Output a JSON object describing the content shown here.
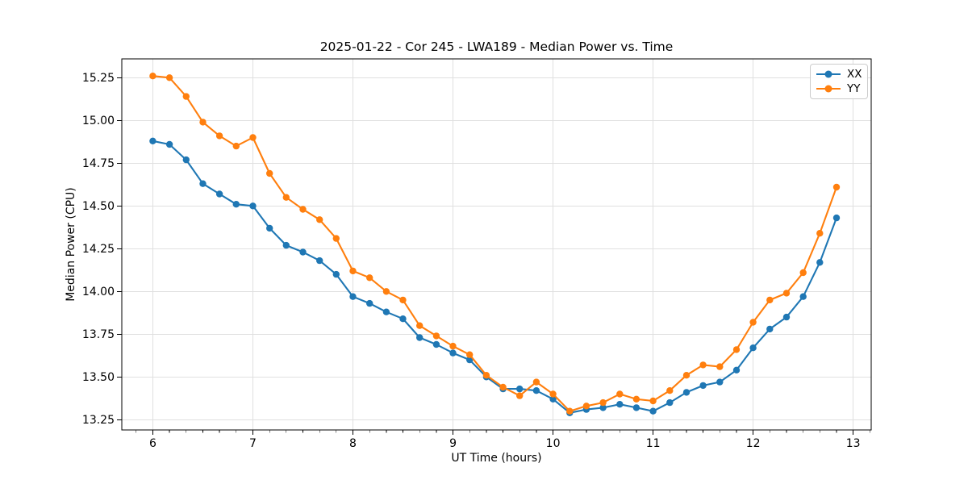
{
  "figure": {
    "background": "#ffffff"
  },
  "chart_data": {
    "type": "line",
    "title": "2025-01-22 - Cor 245 - LWA189 - Median Power vs. Time",
    "xlabel": "UT Time (hours)",
    "ylabel": "Median Power (CPU)",
    "xlim": [
      5.69,
      13.18
    ],
    "ylim": [
      13.19,
      15.36
    ],
    "xticks": [
      6,
      7,
      8,
      9,
      10,
      11,
      12,
      13
    ],
    "xtick_labels": [
      "6",
      "7",
      "8",
      "9",
      "10",
      "11",
      "12",
      "13"
    ],
    "yticks": [
      13.25,
      13.5,
      13.75,
      14.0,
      14.25,
      14.5,
      14.75,
      15.0,
      15.25
    ],
    "ytick_labels": [
      "13.25",
      "13.50",
      "13.75",
      "14.00",
      "14.25",
      "14.50",
      "14.75",
      "15.00",
      "15.25"
    ],
    "minor_xtick_interval": 0.166667,
    "grid": true,
    "grid_color": "#e0e0e0",
    "axis_color": "#000000",
    "legend_position": "upper right",
    "marker": "circle",
    "x": [
      6.0,
      6.1667,
      6.3333,
      6.5,
      6.6667,
      6.8333,
      7.0,
      7.1667,
      7.3333,
      7.5,
      7.6667,
      7.8333,
      8.0,
      8.1667,
      8.3333,
      8.5,
      8.6667,
      8.8333,
      9.0,
      9.1667,
      9.3333,
      9.5,
      9.6667,
      9.8333,
      10.0,
      10.1667,
      10.3333,
      10.5,
      10.6667,
      10.8333,
      11.0,
      11.1667,
      11.3333,
      11.5,
      11.6667,
      11.8333,
      12.0,
      12.1667,
      12.3333,
      12.5,
      12.6667,
      12.8333
    ],
    "series": [
      {
        "name": "XX",
        "color": "#1f77b4",
        "values": [
          14.88,
          14.86,
          14.77,
          14.63,
          14.57,
          14.51,
          14.5,
          14.37,
          14.27,
          14.23,
          14.18,
          14.1,
          13.97,
          13.93,
          13.88,
          13.84,
          13.73,
          13.69,
          13.64,
          13.6,
          13.5,
          13.43,
          13.43,
          13.42,
          13.37,
          13.29,
          13.31,
          13.32,
          13.34,
          13.32,
          13.3,
          13.35,
          13.41,
          13.45,
          13.47,
          13.54,
          13.67,
          13.78,
          13.85,
          13.97,
          14.17,
          14.43
        ]
      },
      {
        "name": "YY",
        "color": "#ff7f0e",
        "values": [
          15.26,
          15.25,
          15.14,
          14.99,
          14.91,
          14.85,
          14.9,
          14.69,
          14.55,
          14.48,
          14.42,
          14.31,
          14.12,
          14.08,
          14.0,
          13.95,
          13.8,
          13.74,
          13.68,
          13.63,
          13.51,
          13.44,
          13.39,
          13.47,
          13.4,
          13.3,
          13.33,
          13.35,
          13.4,
          13.37,
          13.36,
          13.42,
          13.51,
          13.57,
          13.56,
          13.66,
          13.82,
          13.95,
          13.99,
          14.11,
          14.34,
          14.61
        ]
      }
    ]
  }
}
